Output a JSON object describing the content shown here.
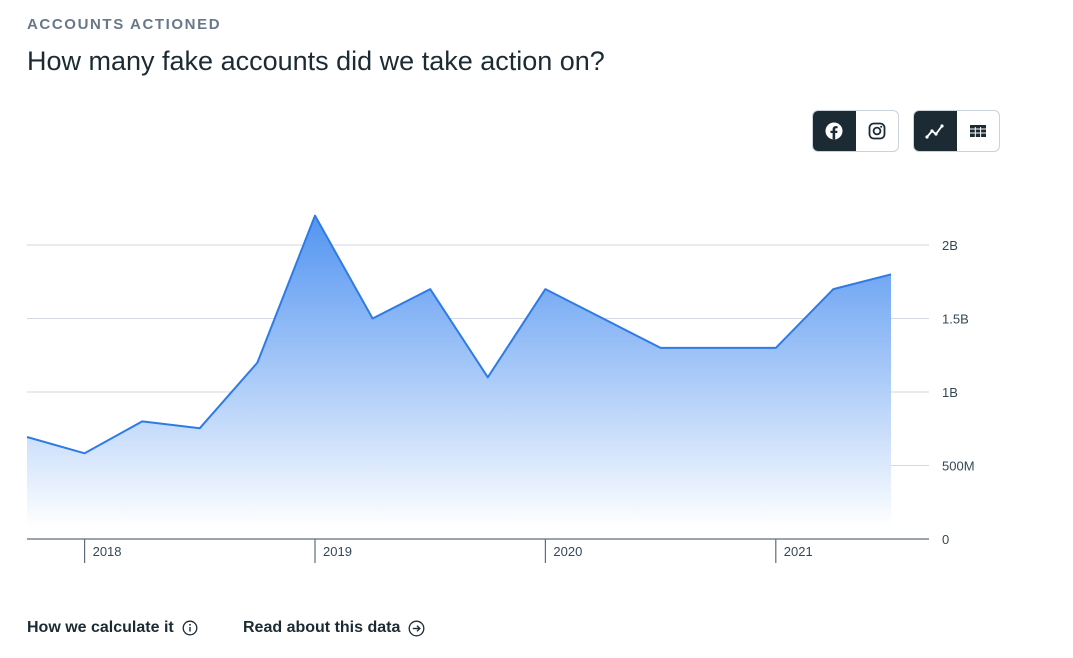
{
  "header": {
    "eyebrow": "ACCOUNTS ACTIONED",
    "title": "How many fake accounts did we take action on?"
  },
  "toggles": {
    "platform": [
      {
        "name": "facebook",
        "icon": "facebook-icon",
        "active": true
      },
      {
        "name": "instagram",
        "icon": "instagram-icon",
        "active": false
      }
    ],
    "view": [
      {
        "name": "chart",
        "icon": "line-chart-icon",
        "active": true
      },
      {
        "name": "table",
        "icon": "table-icon",
        "active": false
      }
    ]
  },
  "footer": {
    "calc_label": "How we calculate it",
    "read_label": "Read about this data"
  },
  "colors": {
    "line": "#2f7be6",
    "fill_top": "#4a8ff0",
    "fill_bottom": "#ffffff",
    "grid": "#d3d9df",
    "axis": "#5f6e7a",
    "dark": "#1c2b33"
  },
  "chart_data": {
    "type": "area",
    "title": "",
    "xlabel": "",
    "ylabel": "",
    "x": [
      "2017 Q4",
      "2018 Q1",
      "2018 Q2",
      "2018 Q3",
      "2018 Q4",
      "2019 Q1",
      "2019 Q2",
      "2019 Q3",
      "2019 Q4",
      "2020 Q1",
      "2020 Q2",
      "2020 Q3",
      "2020 Q4",
      "2021 Q1",
      "2021 Q2",
      "2021 Q3"
    ],
    "values": [
      694000000,
      583000000,
      800000000,
      754000000,
      1200000000,
      2200000000,
      1500000000,
      1700000000,
      1100000000,
      1700000000,
      1500000000,
      1300000000,
      1300000000,
      1300000000,
      1700000000,
      1800000000
    ],
    "ylim": [
      0,
      2000000000
    ],
    "yticks": [
      {
        "value": 2000000000,
        "label": "2B"
      },
      {
        "value": 1500000000,
        "label": "1.5B"
      },
      {
        "value": 1000000000,
        "label": "1B"
      },
      {
        "value": 500000000,
        "label": "500M"
      },
      {
        "value": 0,
        "label": "0"
      }
    ],
    "xticks": [
      {
        "at": 1,
        "label": "2018"
      },
      {
        "at": 5,
        "label": "2019"
      },
      {
        "at": 9,
        "label": "2020"
      },
      {
        "at": 13,
        "label": "2021"
      }
    ],
    "grid": true
  }
}
